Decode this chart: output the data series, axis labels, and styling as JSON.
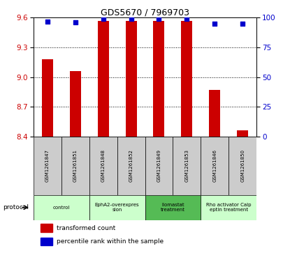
{
  "title": "GDS5670 / 7969703",
  "samples": [
    "GSM1261847",
    "GSM1261851",
    "GSM1261848",
    "GSM1261852",
    "GSM1261849",
    "GSM1261853",
    "GSM1261846",
    "GSM1261850"
  ],
  "transformed_counts": [
    9.18,
    9.06,
    9.57,
    9.57,
    9.57,
    9.57,
    8.87,
    8.46
  ],
  "percentile_ranks": [
    97,
    96,
    99,
    99,
    99,
    99,
    95,
    95
  ],
  "ylim_left": [
    8.4,
    9.6
  ],
  "ylim_right": [
    0,
    100
  ],
  "yticks_left": [
    8.4,
    8.7,
    9.0,
    9.3,
    9.6
  ],
  "yticks_right": [
    0,
    25,
    50,
    75,
    100
  ],
  "protocols": [
    {
      "label": "control",
      "samples": [
        0,
        1
      ],
      "color": "#ccffcc"
    },
    {
      "label": "EphA2-overexpres\nsion",
      "samples": [
        2,
        3
      ],
      "color": "#ccffcc"
    },
    {
      "label": "Ilomastat\ntreatment",
      "samples": [
        4,
        5
      ],
      "color": "#55bb55"
    },
    {
      "label": "Rho activator Calp\neptin treatment",
      "samples": [
        6,
        7
      ],
      "color": "#ccffcc"
    }
  ],
  "bar_color": "#cc0000",
  "dot_color": "#0000cc",
  "bar_width": 0.4,
  "dot_size": 18,
  "grid_color": "#000000",
  "tick_label_color_left": "#cc0000",
  "tick_label_color_right": "#0000cc",
  "legend_items": [
    {
      "color": "#cc0000",
      "label": "transformed count"
    },
    {
      "color": "#0000cc",
      "label": "percentile rank within the sample"
    }
  ],
  "protocol_label": "protocol",
  "sample_box_color": "#cccccc"
}
